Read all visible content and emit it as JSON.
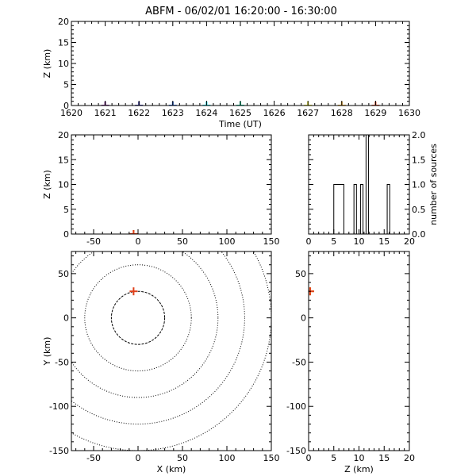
{
  "title": "ABFM - 06/02/01 16:20:00 - 16:30:00",
  "chart_data": [
    {
      "type": "scatter",
      "panel": "time-altitude",
      "xlabel": "Time (UT)",
      "ylabel": "Z (km)",
      "xlim": [
        1620,
        1630
      ],
      "ylim": [
        0,
        20
      ],
      "xticks": [
        "1620",
        "1621",
        "1622",
        "1623",
        "1624",
        "1625",
        "1626",
        "1627",
        "1628",
        "1629",
        "1630"
      ],
      "yticks": [
        "0",
        "5",
        "10",
        "15",
        "20"
      ],
      "points": [
        {
          "x": 1621,
          "y": 0,
          "color": "#7a1f8c"
        },
        {
          "x": 1622,
          "y": 0,
          "color": "#2e2ea0"
        },
        {
          "x": 1623,
          "y": 0,
          "color": "#1f5fd8"
        },
        {
          "x": 1624,
          "y": 0,
          "color": "#00e5f0"
        },
        {
          "x": 1625,
          "y": 0,
          "color": "#00d8a0"
        },
        {
          "x": 1627,
          "y": 0,
          "color": "#e6e62a"
        },
        {
          "x": 1628,
          "y": 0,
          "color": "#e8a21a"
        },
        {
          "x": 1629,
          "y": 0,
          "color": "#e0401a"
        }
      ]
    },
    {
      "type": "scatter",
      "panel": "x-altitude",
      "ylabel": "Z (km)",
      "xlim": [
        -75,
        150
      ],
      "ylim": [
        0,
        20
      ],
      "xticks": [
        "-50",
        "0",
        "50",
        "100",
        "150"
      ],
      "yticks": [
        "0",
        "5",
        "10",
        "15",
        "20"
      ],
      "points": [
        {
          "x": -5,
          "y": 0,
          "color": "#e8a21a"
        },
        {
          "x": -5,
          "y": 0,
          "color": "#e0401a"
        }
      ]
    },
    {
      "type": "histogram",
      "panel": "altitude-histogram",
      "ylabel": "number of sources",
      "xlim": [
        0,
        20
      ],
      "ylim": [
        0,
        2
      ],
      "xticks": [
        "0",
        "5",
        "10",
        "15",
        "20"
      ],
      "yticks": [
        "0.0",
        "0.5",
        "1.0",
        "1.5",
        "2.0"
      ],
      "bins": [
        {
          "x0": 0,
          "x1": 5,
          "value": 0
        },
        {
          "x0": 5,
          "x1": 7,
          "value": 1
        },
        {
          "x0": 7,
          "x1": 9,
          "value": 0
        },
        {
          "x0": 9,
          "x1": 9.5,
          "value": 1
        },
        {
          "x0": 9.5,
          "x1": 10.3,
          "value": 0
        },
        {
          "x0": 10.3,
          "x1": 10.8,
          "value": 1
        },
        {
          "x0": 10.8,
          "x1": 11.4,
          "value": 0
        },
        {
          "x0": 11.4,
          "x1": 11.9,
          "value": 2
        },
        {
          "x0": 11.9,
          "x1": 15.6,
          "value": 0
        },
        {
          "x0": 15.6,
          "x1": 16.1,
          "value": 1
        },
        {
          "x0": 16.1,
          "x1": 20,
          "value": 0
        }
      ]
    },
    {
      "type": "scatter",
      "panel": "plan-view",
      "xlabel": "X (km)",
      "ylabel": "Y (km)",
      "xlim": [
        -75,
        150
      ],
      "ylim": [
        -150,
        75
      ],
      "xticks": [
        "-50",
        "0",
        "50",
        "100",
        "150"
      ],
      "yticks": [
        "-150",
        "-100",
        "-50",
        "0",
        "50"
      ],
      "range_rings_km": [
        30,
        60,
        90,
        120,
        150
      ],
      "points": [
        {
          "x": -5,
          "y": 30,
          "color": "#e0401a"
        }
      ]
    },
    {
      "type": "scatter",
      "panel": "altitude-y",
      "xlabel": "Z (km)",
      "xlim": [
        0,
        20
      ],
      "ylim": [
        -150,
        75
      ],
      "xticks": [
        "0",
        "5",
        "10",
        "15",
        "20"
      ],
      "yticks": [
        "-150",
        "-100",
        "-50",
        "0",
        "50"
      ],
      "points": [
        {
          "x": 0.3,
          "y": 30,
          "color": "#e8a21a"
        },
        {
          "x": 0.3,
          "y": 30,
          "color": "#e0401a"
        }
      ]
    }
  ]
}
